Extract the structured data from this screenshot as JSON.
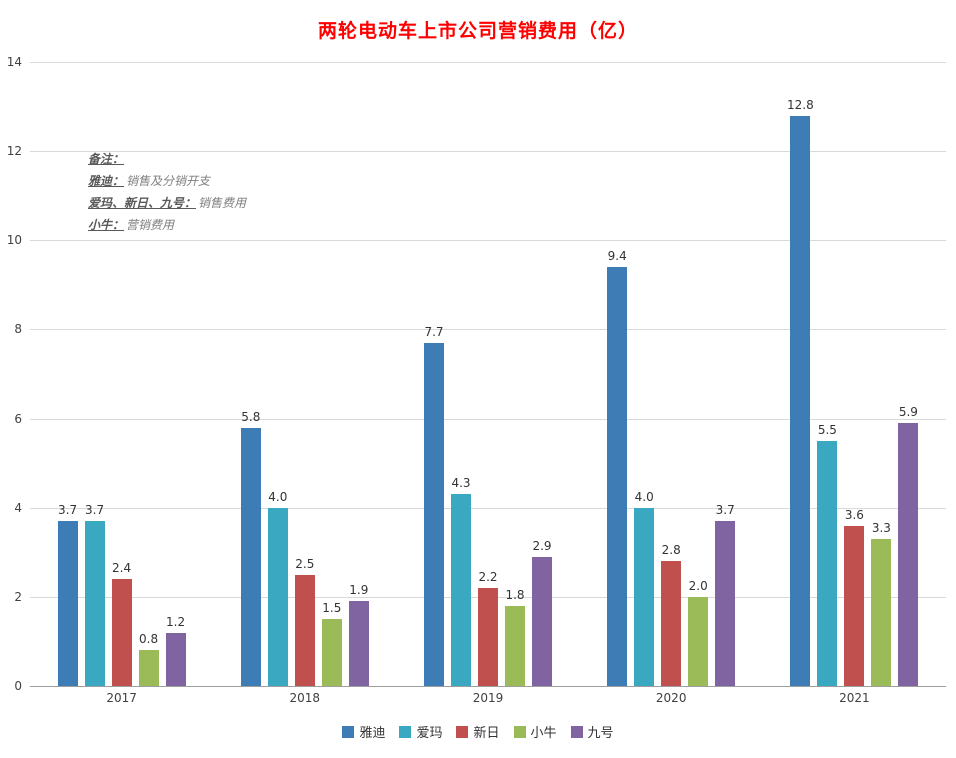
{
  "chart_data": {
    "type": "bar",
    "title": "两轮电动车上市公司营销费用（亿）",
    "categories": [
      "2017",
      "2018",
      "2019",
      "2020",
      "2021"
    ],
    "series": [
      {
        "name": "雅迪",
        "color": "#3e7cb5",
        "values": [
          3.7,
          5.8,
          7.7,
          9.4,
          12.8
        ]
      },
      {
        "name": "爱玛",
        "color": "#3ba8c2",
        "values": [
          3.7,
          4.0,
          4.3,
          4.0,
          5.5
        ]
      },
      {
        "name": "新日",
        "color": "#c0504d",
        "values": [
          2.4,
          2.5,
          2.2,
          2.8,
          3.6
        ]
      },
      {
        "name": "小牛",
        "color": "#9bbb59",
        "values": [
          0.8,
          1.5,
          1.8,
          2.0,
          3.3
        ]
      },
      {
        "name": "九号",
        "color": "#8064a2",
        "values": [
          1.2,
          1.9,
          2.9,
          3.7,
          5.9
        ]
      }
    ],
    "xlabel": "",
    "ylabel": "",
    "ylim": [
      0,
      14
    ],
    "ytick_step": 2,
    "grid": true,
    "legend_position": "bottom",
    "value_label_format": "0.0"
  },
  "note": {
    "lines": [
      {
        "label": "备注：",
        "text": ""
      },
      {
        "label": "雅迪：",
        "text": "销售及分销开支"
      },
      {
        "label": "爱玛、新日、九号：",
        "text": "销售费用"
      },
      {
        "label": "小牛：",
        "text": "营销费用"
      }
    ]
  },
  "colors": {
    "title": "#fe0000",
    "grid": "#d9d9d9",
    "baseline": "#9e9e9e",
    "tick_label": "#404040",
    "note_label": "#595959",
    "note_text": "#7f7f7f"
  }
}
